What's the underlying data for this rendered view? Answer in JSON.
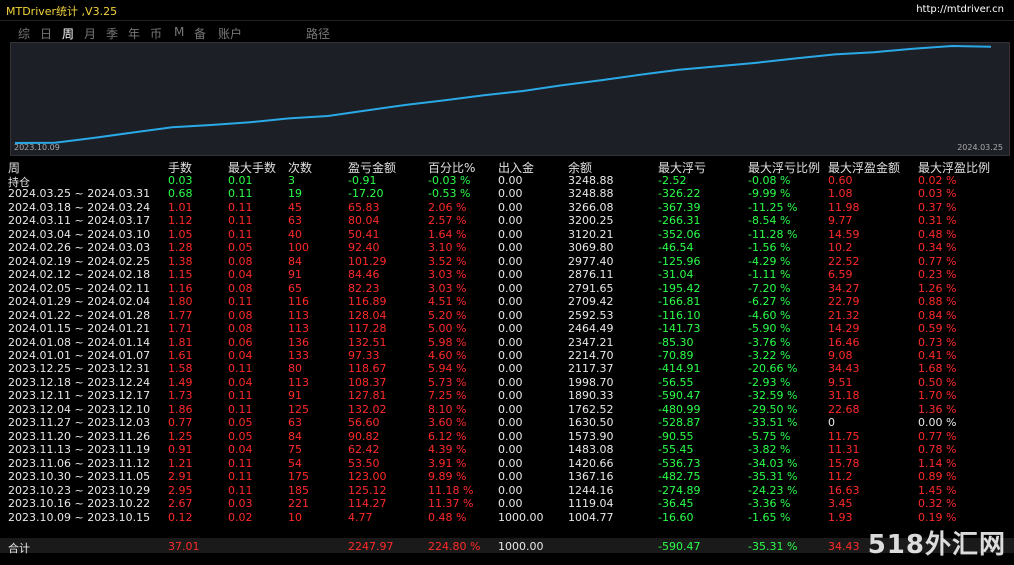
{
  "header": {
    "title": "MTDriver统计 ,V3.25",
    "url": "http://mtdriver.cn"
  },
  "tabs": {
    "items": [
      "综",
      "日",
      "周",
      "月",
      "季",
      "年",
      "币",
      "M",
      "备",
      "账户",
      "路径"
    ],
    "active": "周"
  },
  "chart": {
    "start_label": "2023.10.09",
    "end_label": "2024.03.25"
  },
  "table": {
    "columns": [
      "周",
      "手数",
      "最大手数",
      "次数",
      "盈亏金额",
      "百分比%",
      "出入金",
      "余额",
      "最大浮亏",
      "最大浮亏比例",
      "最大浮盈金额",
      "最大浮盈比例"
    ],
    "rows": [
      [
        "持仓",
        "0.03",
        "0.01",
        "3",
        "-0.91",
        "-0.03 %",
        "0.00",
        "3248.88",
        "-2.52",
        "-0.08 %",
        "0.60",
        "0.02 %"
      ],
      [
        "2024.03.25 ~ 2024.03.31",
        "0.68",
        "0.11",
        "19",
        "-17.20",
        "-0.53 %",
        "0.00",
        "3248.88",
        "-326.22",
        "-9.99 %",
        "1.08",
        "0.03 %"
      ],
      [
        "2024.03.18 ~ 2024.03.24",
        "1.01",
        "0.11",
        "45",
        "65.83",
        "2.06 %",
        "0.00",
        "3266.08",
        "-367.39",
        "-11.25 %",
        "11.98",
        "0.37 %"
      ],
      [
        "2024.03.11 ~ 2024.03.17",
        "1.12",
        "0.11",
        "63",
        "80.04",
        "2.57 %",
        "0.00",
        "3200.25",
        "-266.31",
        "-8.54 %",
        "9.77",
        "0.31 %"
      ],
      [
        "2024.03.04 ~ 2024.03.10",
        "1.05",
        "0.11",
        "40",
        "50.41",
        "1.64 %",
        "0.00",
        "3120.21",
        "-352.06",
        "-11.28 %",
        "14.59",
        "0.48 %"
      ],
      [
        "2024.02.26 ~ 2024.03.03",
        "1.28",
        "0.05",
        "100",
        "92.40",
        "3.10 %",
        "0.00",
        "3069.80",
        "-46.54",
        "-1.56 %",
        "10.2",
        "0.34 %"
      ],
      [
        "2024.02.19 ~ 2024.02.25",
        "1.38",
        "0.08",
        "84",
        "101.29",
        "3.52 %",
        "0.00",
        "2977.40",
        "-125.96",
        "-4.29 %",
        "22.52",
        "0.77 %"
      ],
      [
        "2024.02.12 ~ 2024.02.18",
        "1.15",
        "0.04",
        "91",
        "84.46",
        "3.03 %",
        "0.00",
        "2876.11",
        "-31.04",
        "-1.11 %",
        "6.59",
        "0.23 %"
      ],
      [
        "2024.02.05 ~ 2024.02.11",
        "1.16",
        "0.08",
        "65",
        "82.23",
        "3.03 %",
        "0.00",
        "2791.65",
        "-195.42",
        "-7.20 %",
        "34.27",
        "1.26 %"
      ],
      [
        "2024.01.29 ~ 2024.02.04",
        "1.80",
        "0.11",
        "116",
        "116.89",
        "4.51 %",
        "0.00",
        "2709.42",
        "-166.81",
        "-6.27 %",
        "22.79",
        "0.88 %"
      ],
      [
        "2024.01.22 ~ 2024.01.28",
        "1.77",
        "0.08",
        "113",
        "128.04",
        "5.20 %",
        "0.00",
        "2592.53",
        "-116.10",
        "-4.60 %",
        "21.32",
        "0.84 %"
      ],
      [
        "2024.01.15 ~ 2024.01.21",
        "1.71",
        "0.08",
        "113",
        "117.28",
        "5.00 %",
        "0.00",
        "2464.49",
        "-141.73",
        "-5.90 %",
        "14.29",
        "0.59 %"
      ],
      [
        "2024.01.08 ~ 2024.01.14",
        "1.81",
        "0.06",
        "136",
        "132.51",
        "5.98 %",
        "0.00",
        "2347.21",
        "-85.30",
        "-3.76 %",
        "16.46",
        "0.73 %"
      ],
      [
        "2024.01.01 ~ 2024.01.07",
        "1.61",
        "0.04",
        "133",
        "97.33",
        "4.60 %",
        "0.00",
        "2214.70",
        "-70.89",
        "-3.22 %",
        "9.08",
        "0.41 %"
      ],
      [
        "2023.12.25 ~ 2023.12.31",
        "1.58",
        "0.11",
        "80",
        "118.67",
        "5.94 %",
        "0.00",
        "2117.37",
        "-414.91",
        "-20.66 %",
        "34.43",
        "1.68 %"
      ],
      [
        "2023.12.18 ~ 2023.12.24",
        "1.49",
        "0.04",
        "113",
        "108.37",
        "5.73 %",
        "0.00",
        "1998.70",
        "-56.55",
        "-2.93 %",
        "9.51",
        "0.50 %"
      ],
      [
        "2023.12.11 ~ 2023.12.17",
        "1.73",
        "0.11",
        "91",
        "127.81",
        "7.25 %",
        "0.00",
        "1890.33",
        "-590.47",
        "-32.59 %",
        "31.18",
        "1.70 %"
      ],
      [
        "2023.12.04 ~ 2023.12.10",
        "1.86",
        "0.11",
        "125",
        "132.02",
        "8.10 %",
        "0.00",
        "1762.52",
        "-480.99",
        "-29.50 %",
        "22.68",
        "1.36 %"
      ],
      [
        "2023.11.27 ~ 2023.12.03",
        "0.77",
        "0.05",
        "63",
        "56.60",
        "3.60 %",
        "0.00",
        "1630.50",
        "-528.87",
        "-33.51 %",
        "0",
        "0.00 %"
      ],
      [
        "2023.11.20 ~ 2023.11.26",
        "1.25",
        "0.05",
        "84",
        "90.82",
        "6.12 %",
        "0.00",
        "1573.90",
        "-90.55",
        "-5.75 %",
        "11.75",
        "0.77 %"
      ],
      [
        "2023.11.13 ~ 2023.11.19",
        "0.91",
        "0.04",
        "75",
        "62.42",
        "4.39 %",
        "0.00",
        "1483.08",
        "-55.45",
        "-3.82 %",
        "11.31",
        "0.78 %"
      ],
      [
        "2023.11.06 ~ 2023.11.12",
        "1.21",
        "0.11",
        "54",
        "53.50",
        "3.91 %",
        "0.00",
        "1420.66",
        "-536.73",
        "-34.03 %",
        "15.78",
        "1.14 %"
      ],
      [
        "2023.10.30 ~ 2023.11.05",
        "2.91",
        "0.11",
        "175",
        "123.00",
        "9.89 %",
        "0.00",
        "1367.16",
        "-482.75",
        "-35.31 %",
        "11.2",
        "0.89 %"
      ],
      [
        "2023.10.23 ~ 2023.10.29",
        "2.95",
        "0.11",
        "185",
        "125.12",
        "11.18 %",
        "0.00",
        "1244.16",
        "-274.89",
        "-24.23 %",
        "16.63",
        "1.45 %"
      ],
      [
        "2023.10.16 ~ 2023.10.22",
        "2.67",
        "0.03",
        "221",
        "114.27",
        "11.37 %",
        "0.00",
        "1119.04",
        "-36.45",
        "-3.36 %",
        "3.45",
        "0.32 %"
      ],
      [
        "2023.10.09 ~ 2023.10.15",
        "0.12",
        "0.02",
        "10",
        "4.77",
        "0.48 %",
        "1000.00",
        "1004.77",
        "-16.60",
        "-1.65 %",
        "1.93",
        "0.19 %"
      ]
    ],
    "total": [
      "合计",
      "37.01",
      null,
      null,
      "2247.97",
      "224.80 %",
      "1000.00",
      null,
      "-590.47",
      "-35.31 %",
      "34.43",
      null
    ]
  },
  "watermark": "518外汇网"
}
